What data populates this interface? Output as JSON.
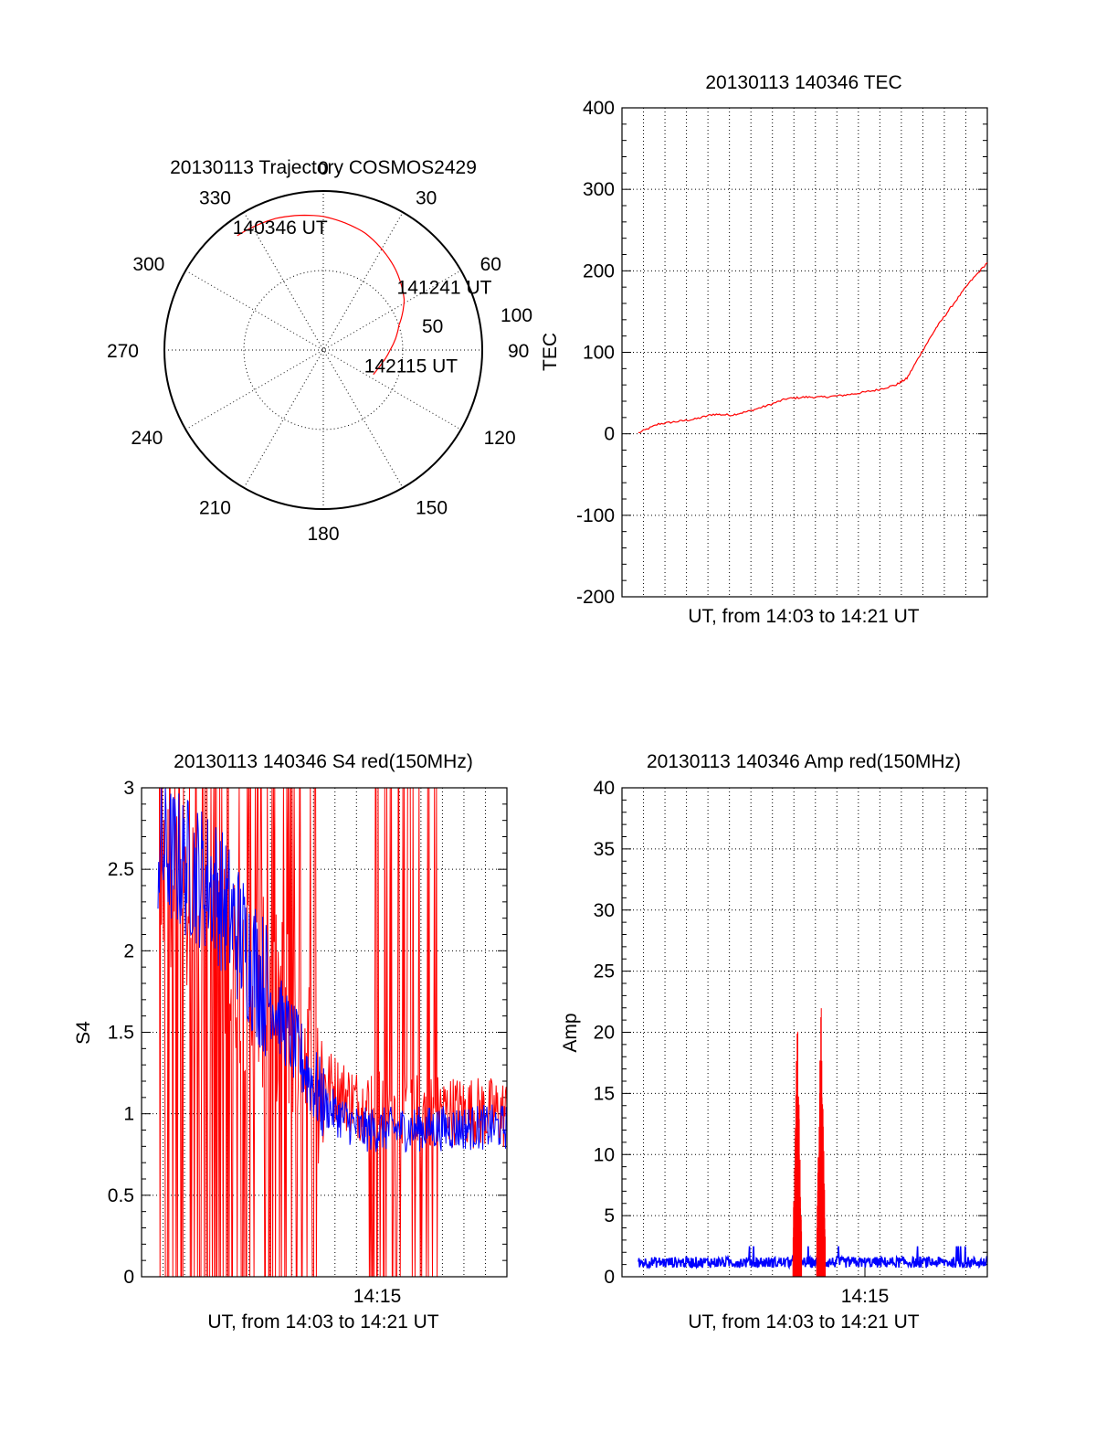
{
  "chart_data": [
    {
      "type": "polar",
      "title": "20130113 Trajectory COSMOS2429",
      "angle_labels": [
        "0",
        "30",
        "60",
        "90",
        "120",
        "150",
        "180",
        "210",
        "240",
        "270",
        "300",
        "330"
      ],
      "radius_labels": [
        "50",
        "100"
      ],
      "series": [
        {
          "color": "#ff0000",
          "points": [
            [
              323,
              90
            ],
            [
              340,
              88
            ],
            [
              0,
              84
            ],
            [
              20,
              78
            ],
            [
              42,
              68
            ],
            [
              58,
              60
            ],
            [
              72,
              50
            ],
            [
              90,
              42
            ],
            [
              102,
              38
            ],
            [
              110,
              36
            ],
            [
              116,
              35
            ]
          ]
        }
      ],
      "annotations": [
        {
          "text": "140346 UT",
          "az": 323,
          "r": 90
        },
        {
          "text": "141241 UT",
          "az": 58,
          "r": 60
        },
        {
          "text": "142115 UT",
          "az": 116,
          "r": 35
        }
      ]
    },
    {
      "type": "line",
      "title": "20130113 140346 TEC",
      "xlabel": "UT, from 14:03 to 14:21 UT",
      "ylabel": "TEC",
      "ylim": [
        -200,
        400
      ],
      "yticks": [
        "400",
        "300",
        "200",
        "100",
        "0",
        "-100",
        "-200"
      ],
      "xlim": [
        0,
        1
      ],
      "grid": true,
      "series": [
        {
          "color": "#ff0000",
          "x": [
            0.045,
            0.1,
            0.15,
            0.2,
            0.25,
            0.3,
            0.35,
            0.4,
            0.45,
            0.5,
            0.55,
            0.6,
            0.65,
            0.7,
            0.75,
            0.78,
            0.82,
            0.86,
            0.9,
            0.95,
            1.0
          ],
          "y": [
            1,
            12,
            15,
            18,
            24,
            23,
            28,
            35,
            43,
            45,
            45,
            47,
            50,
            54,
            60,
            68,
            100,
            130,
            155,
            185,
            210
          ]
        }
      ]
    },
    {
      "type": "line",
      "title": "20130113 140346 S4 red(150MHz)",
      "xlabel": "UT, from 14:03 to 14:21 UT",
      "ylabel": "S4",
      "ylim": [
        0,
        3
      ],
      "yticks": [
        "3",
        "2.5",
        "2",
        "1.5",
        "1",
        "0.5",
        "0"
      ],
      "xticks": [
        {
          "label": "14:15",
          "x": 0.645
        }
      ],
      "grid": true,
      "series": [
        {
          "color": "#ff0000",
          "description_mean": [
            [
              0,
              2.6
            ],
            [
              0.2,
              2.0
            ],
            [
              0.4,
              1.6
            ],
            [
              0.5,
              1.2
            ],
            [
              0.6,
              1.05
            ],
            [
              1,
              1.0
            ]
          ]
        },
        {
          "color": "#0000ff",
          "description_mean": [
            [
              0,
              2.7
            ],
            [
              0.2,
              2.4
            ],
            [
              0.4,
              1.5
            ],
            [
              0.5,
              1.05
            ],
            [
              0.6,
              0.9
            ],
            [
              1,
              0.92
            ]
          ]
        }
      ]
    },
    {
      "type": "line",
      "title": "20130113 140346 Amp red(150MHz)",
      "xlabel": "UT, from 14:03 to 14:21 UT",
      "ylabel": "Amp",
      "ylim": [
        0,
        40
      ],
      "yticks": [
        "40",
        "35",
        "30",
        "25",
        "20",
        "15",
        "10",
        "5",
        "0"
      ],
      "xticks": [
        {
          "label": "14:15",
          "x": 0.665
        }
      ],
      "grid": true,
      "series": [
        {
          "color": "#ff0000",
          "peaks": [
            {
              "x": 0.48,
              "y": 22.5
            },
            {
              "x": 0.545,
              "y": 23.3
            }
          ]
        },
        {
          "color": "#0000ff",
          "baseline": 1.0
        }
      ]
    }
  ]
}
